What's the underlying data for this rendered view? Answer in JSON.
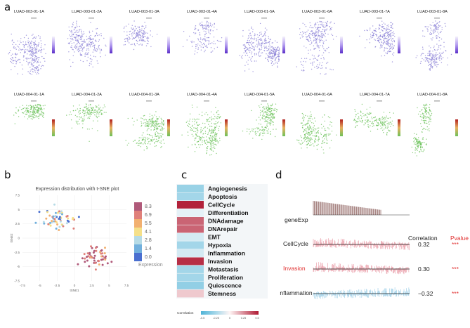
{
  "panels": {
    "a": "a",
    "b": "b",
    "c": "c",
    "d": "d"
  },
  "panel_a": {
    "row1_titles": [
      "LUAD-003-01-1A",
      "LUAD-003-01-2A",
      "LUAD-003-01-3A",
      "LUAD-003-01-4A",
      "LUAD-003-01-5A",
      "LUAD-003-01-6A",
      "LUAD-003-01-7A",
      "LUAD-003-01-8A"
    ],
    "row2_titles": [
      "LUAD-004-01-1A",
      "LUAD-004-01-2A",
      "LUAD-004-01-3A",
      "LUAD-004-01-4A",
      "LUAD-004-01-5A",
      "LUAD-004-01-6A",
      "LUAD-004-01-7A",
      "LUAD-004-01-8A"
    ],
    "row1_color": "#8a7fd6",
    "row2_color": "#6cc25a"
  },
  "chart_data": [
    {
      "type": "scatter",
      "title": "Expression distribution with t-SNE plot",
      "xlabel": "tSNE1",
      "ylabel": "tSNE2",
      "xlim": [
        -7.5,
        7.5
      ],
      "ylim": [
        -7.5,
        7.5
      ],
      "xticks": [
        "-7.5",
        "-5",
        "-2.5",
        "0",
        "2.5",
        "5",
        "7.5"
      ],
      "yticks": [
        "7.5",
        "5",
        "2.5",
        "0",
        "-2.5",
        "-5",
        "-7.5"
      ],
      "legend_title": "Expression",
      "legend_levels": [
        "8.3",
        "6.9",
        "5.5",
        "4.1",
        "2.8",
        "1.4",
        "0.0"
      ],
      "legend_colors": [
        "#b05a7a",
        "#e0807a",
        "#f2b070",
        "#f5e08a",
        "#b6dbe6",
        "#72b0dd",
        "#4a6fd0"
      ],
      "clusters": [
        {
          "name": "upper-left",
          "center": [
            -2.2,
            3.3
          ],
          "spread": [
            2.0,
            1.6
          ],
          "count": 55,
          "levels": [
            1,
            2,
            3,
            4,
            5,
            6
          ]
        },
        {
          "name": "lower-right",
          "center": [
            3.0,
            -3.4
          ],
          "spread": [
            1.4,
            1.2
          ],
          "count": 55,
          "levels": [
            0,
            0,
            0,
            1,
            1,
            2
          ]
        }
      ]
    },
    {
      "type": "heatmap",
      "rows": [
        "Angiogenesis",
        "Apoptosis",
        "CellCycle",
        "Differentiation",
        "DNAdamage",
        "DNArepair",
        "EMT",
        "Hypoxia",
        "Inflammation",
        "Invasion",
        "Metastasis",
        "Proliferation",
        "Quiescence",
        "Stemness"
      ],
      "values": [
        -0.28,
        -0.25,
        0.48,
        -0.05,
        0.33,
        0.33,
        -0.1,
        -0.25,
        -0.1,
        0.45,
        -0.25,
        -0.25,
        -0.3,
        0.1
      ],
      "colorbar_label": "Correlation",
      "colorbar_ticks": [
        "-0.5",
        "-0.25",
        "0",
        "0.25",
        "0.5"
      ],
      "range": [
        -0.5,
        0.5
      ]
    },
    {
      "type": "line",
      "tracks": [
        {
          "name": "geneExp",
          "color": "#a07a78",
          "correlation": "",
          "pvalue": ""
        },
        {
          "name": "CellCycle",
          "color": "#e07080",
          "correlation": "0.32",
          "pvalue": "***"
        },
        {
          "name": "Invasion",
          "color": "#e07080",
          "correlation": "0.30",
          "pvalue": "***"
        },
        {
          "name": "Inflammation",
          "color": "#70b8dc",
          "correlation": "−0.32",
          "pvalue": "***"
        }
      ],
      "header_correlation": "Correlation",
      "header_pvalue": "Pvalue",
      "highlight_color": "#e03030"
    }
  ]
}
